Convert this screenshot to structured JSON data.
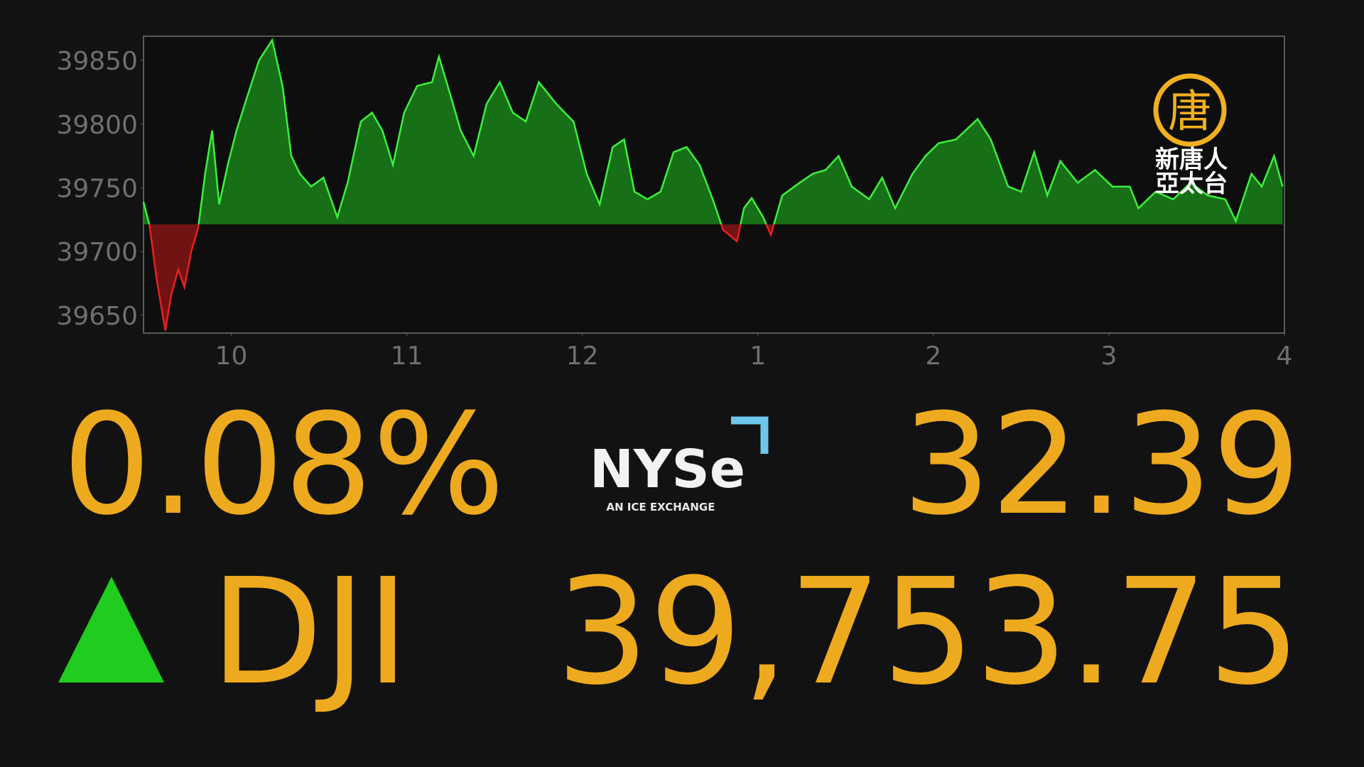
{
  "chart_data": {
    "type": "area",
    "x": [
      9.5,
      9.535,
      9.574,
      9.624,
      9.658,
      9.698,
      9.733,
      9.772,
      9.812,
      9.851,
      9.891,
      9.931,
      9.98,
      10.03,
      10.094,
      10.158,
      10.233,
      10.292,
      10.342,
      10.391,
      10.455,
      10.525,
      10.604,
      10.663,
      10.738,
      10.802,
      10.861,
      10.921,
      10.985,
      11.059,
      11.144,
      11.183,
      11.248,
      11.307,
      11.381,
      11.455,
      11.53,
      11.604,
      11.678,
      11.752,
      11.851,
      11.95,
      12.025,
      12.099,
      12.173,
      12.238,
      12.297,
      12.371,
      12.446,
      12.52,
      12.594,
      12.668,
      12.743,
      12.802,
      12.881,
      12.921,
      12.965,
      13.03,
      13.074,
      13.139,
      13.238,
      13.312,
      13.386,
      13.46,
      13.535,
      13.634,
      13.708,
      13.782,
      13.881,
      13.955,
      14.03,
      14.129,
      14.252,
      14.327,
      14.426,
      14.5,
      14.574,
      14.649,
      14.723,
      14.822,
      14.921,
      15.02,
      15.119,
      15.168,
      15.267,
      15.366,
      15.465,
      15.564,
      15.663,
      15.723,
      15.812,
      15.871,
      15.941,
      15.99
    ],
    "values": [
      39739,
      39720,
      39679,
      39638,
      39666,
      39686,
      39672,
      39700,
      39719,
      39761,
      39795,
      39737,
      39768,
      39795,
      39823,
      39850,
      39866,
      39830,
      39775,
      39761,
      39751,
      39758,
      39727,
      39754,
      39802,
      39809,
      39795,
      39768,
      39809,
      39830,
      39833,
      39853,
      39823,
      39795,
      39775,
      39816,
      39833,
      39809,
      39802,
      39833,
      39816,
      39802,
      39761,
      39737,
      39782,
      39788,
      39747,
      39741,
      39747,
      39778,
      39782,
      39768,
      39741,
      39717,
      39708,
      39734,
      39742,
      39727,
      39713,
      39744,
      39754,
      39761,
      39764,
      39775,
      39751,
      39741,
      39758,
      39734,
      39761,
      39775,
      39785,
      39788,
      39804,
      39788,
      39751,
      39747,
      39778,
      39744,
      39771,
      39754,
      39764,
      39751,
      39751,
      39734,
      39747,
      39741,
      39754,
      39744,
      39741,
      39724,
      39761,
      39751,
      39775,
      39751
    ],
    "up_color": "#1fbf1f",
    "down_color": "#c41818",
    "xlim": [
      9.5,
      16
    ],
    "ylim": [
      39636,
      39869
    ],
    "xticks": [
      10,
      11,
      12,
      {
        "value": 13,
        "label": "1"
      },
      {
        "value": 14,
        "label": "2"
      },
      {
        "value": 15,
        "label": "3"
      },
      {
        "value": 16,
        "label": "4"
      }
    ],
    "yticks": [
      39650,
      39700,
      39750,
      39800,
      39850
    ]
  },
  "ticker": {
    "percent_change": {
      "value": 0.08,
      "label": "0.08%"
    },
    "change": 32.39,
    "symbol": "DJI",
    "price": {
      "value": 39753.75,
      "label": "39,753.75"
    }
  },
  "exchange_logo": {
    "name": "NYSe",
    "tagline": "AN ICE EXCHANGE"
  },
  "channel_logo": {
    "emblem": "唐",
    "line1": "新唐人",
    "line2": "亞太台"
  }
}
